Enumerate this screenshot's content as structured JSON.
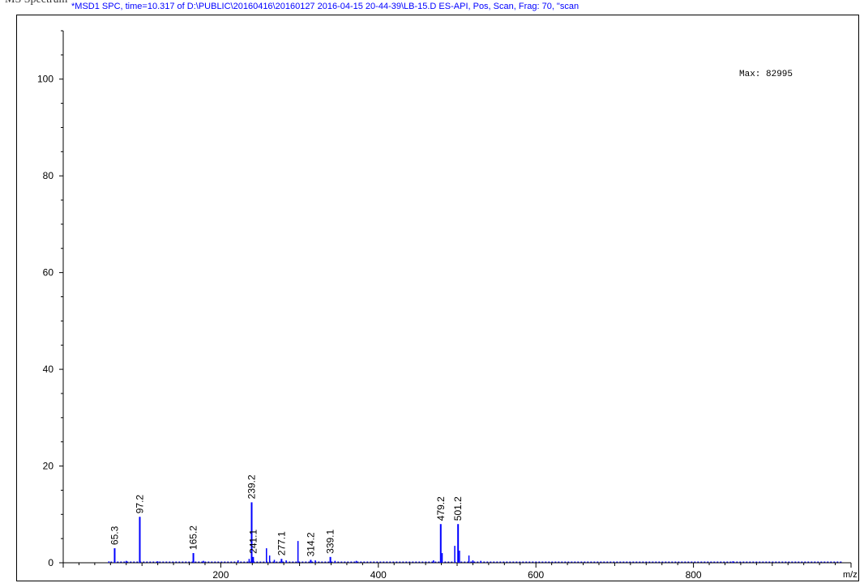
{
  "header": {
    "section_label": "MS Spectrum",
    "scan_title": "*MSD1 SPC, time=10.317 of D:\\PUBLIC\\20160416\\20160127 2016-04-15 20-44-39\\LB-15.D     ES-API, Pos, Scan, Frag: 70, \"scan"
  },
  "colors": {
    "peaks": "#0000ff",
    "axis": "#000000",
    "header_text": "#0000ff"
  },
  "chart_data": {
    "type": "bar",
    "xlabel": "m/z",
    "ylabel": "",
    "xlim": [
      0,
      1000
    ],
    "ylim": [
      0,
      110
    ],
    "x_ticks": [
      200,
      400,
      600,
      800
    ],
    "y_ticks": [
      0,
      20,
      40,
      60,
      80,
      100
    ],
    "max_annotation": "Max: 82995",
    "labeled_peaks": [
      {
        "mz": 65.3,
        "label": "65.3",
        "intensity": 3
      },
      {
        "mz": 97.2,
        "label": "97.2",
        "intensity": 9.5
      },
      {
        "mz": 165.2,
        "label": "165.2",
        "intensity": 2
      },
      {
        "mz": 239.2,
        "label": "239.2",
        "intensity": 12.5
      },
      {
        "mz": 241.1,
        "label": "241.1",
        "intensity": 1.2
      },
      {
        "mz": 277.1,
        "label": "277.1",
        "intensity": 0.8
      },
      {
        "mz": 314.2,
        "label": "314.2",
        "intensity": 0.6
      },
      {
        "mz": 339.1,
        "label": "339.1",
        "intensity": 1.2
      },
      {
        "mz": 479.2,
        "label": "479.2",
        "intensity": 8
      },
      {
        "mz": 501.2,
        "label": "501.2",
        "intensity": 8
      }
    ],
    "unlabeled_peaks": [
      {
        "mz": 58,
        "intensity": 0.3
      },
      {
        "mz": 80,
        "intensity": 0.4
      },
      {
        "mz": 120,
        "intensity": 0.3
      },
      {
        "mz": 178,
        "intensity": 0.4
      },
      {
        "mz": 222,
        "intensity": 0.5
      },
      {
        "mz": 236,
        "intensity": 0.8
      },
      {
        "mz": 258,
        "intensity": 3
      },
      {
        "mz": 262,
        "intensity": 1.5
      },
      {
        "mz": 268,
        "intensity": 0.6
      },
      {
        "mz": 283,
        "intensity": 0.5
      },
      {
        "mz": 298,
        "intensity": 4.5
      },
      {
        "mz": 320,
        "intensity": 0.5
      },
      {
        "mz": 345,
        "intensity": 0.4
      },
      {
        "mz": 372,
        "intensity": 0.4
      },
      {
        "mz": 470,
        "intensity": 0.5
      },
      {
        "mz": 481,
        "intensity": 2
      },
      {
        "mz": 497,
        "intensity": 3.5
      },
      {
        "mz": 503,
        "intensity": 2.5
      },
      {
        "mz": 515,
        "intensity": 1.5
      },
      {
        "mz": 520,
        "intensity": 0.5
      },
      {
        "mz": 530,
        "intensity": 0.4
      },
      {
        "mz": 850,
        "intensity": 0.3
      }
    ]
  }
}
